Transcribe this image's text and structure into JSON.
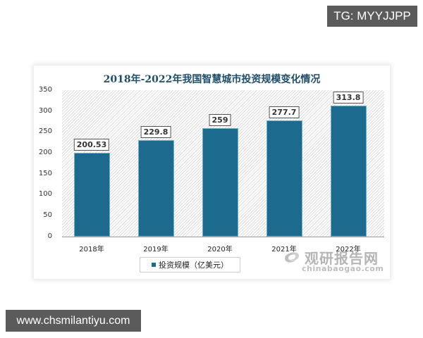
{
  "overlays": {
    "top_right_badge": "TG: MYYJJPP",
    "bottom_left_badge": "www.chsmilantiyu.com"
  },
  "watermark": {
    "name_cn": "观研报告网",
    "domain": "chinabaogao.com"
  },
  "chart_data": {
    "type": "bar",
    "title": "2018年-2022年我国智慧城市投资规模变化情况",
    "categories": [
      "2018年",
      "2019年",
      "2020年",
      "2021年",
      "2022年"
    ],
    "series": [
      {
        "name": "投资规模（亿美元）",
        "values": [
          200.53,
          229.8,
          259,
          277.7,
          313.8
        ],
        "labels": [
          "200.53",
          "229.8",
          "259",
          "277.7",
          "313.8"
        ],
        "color": "#1c6a8e"
      }
    ],
    "xlabel": "",
    "ylabel": "",
    "ylim": [
      0,
      350
    ],
    "yticks": [
      "350",
      "300",
      "250",
      "200",
      "150",
      "100",
      "50",
      "0"
    ],
    "grid": false,
    "background": "diagonal hatch",
    "legend_position": "bottom"
  }
}
